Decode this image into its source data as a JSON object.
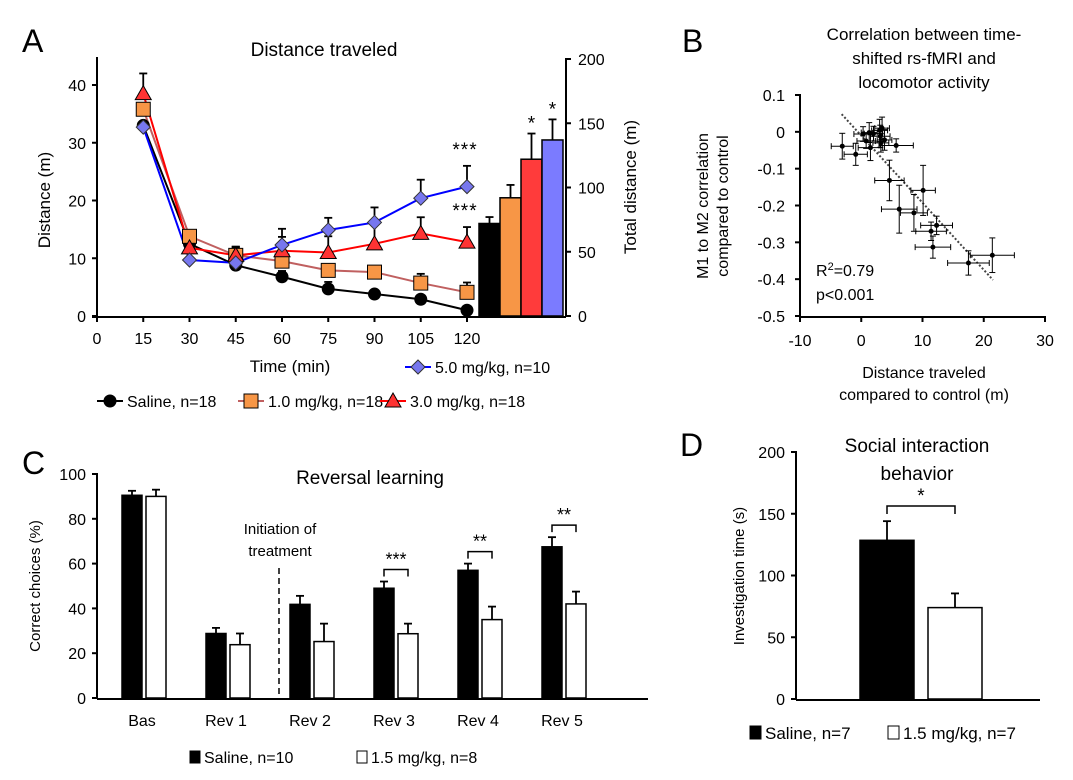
{
  "chart_data": [
    {
      "panel": "A",
      "type": "line",
      "title": "Distance traveled",
      "xlabel": "Time  (min)",
      "ylabel": "Distance (m)",
      "xlim": [
        0,
        120
      ],
      "ylim": [
        0,
        40
      ],
      "xticks": [
        0,
        15,
        30,
        45,
        60,
        75,
        90,
        105,
        120
      ],
      "yticks": [
        0,
        10,
        20,
        30,
        40
      ],
      "x": [
        15,
        30,
        45,
        60,
        75,
        90,
        105,
        120
      ],
      "series": [
        {
          "name": "Saline, n=18",
          "color": "#000000",
          "marker": "circle",
          "fill": "#000000",
          "values": [
            33,
            12.5,
            8.8,
            6.8,
            4.7,
            3.8,
            2.9,
            1.0
          ],
          "errors": [
            0,
            0.5,
            0.5,
            1.0,
            1.2,
            0.5,
            0.6,
            0.3
          ]
        },
        {
          "name": "1.0 mg/kg, n=18",
          "color": "#c06060",
          "marker": "square",
          "fill": "#f79646",
          "values": [
            35.8,
            13.8,
            10.5,
            9.5,
            7.9,
            7.6,
            5.7,
            4.1
          ],
          "errors": [
            0,
            0.7,
            1.5,
            1.1,
            0.8,
            0,
            1.6,
            1.7
          ]
        },
        {
          "name": "3.0 mg/kg, n=18",
          "color": "#ff0000",
          "marker": "triangle",
          "fill": "#ff3333",
          "values": [
            38.5,
            11.8,
            10.5,
            11.3,
            11.0,
            12.5,
            14.3,
            12.8
          ],
          "errors": [
            3.5,
            0,
            1.3,
            2.4,
            2.8,
            3.7,
            2.8,
            2.6
          ]
        },
        {
          "name": "5.0 mg/kg, n=10",
          "color": "#0000ff",
          "marker": "diamond",
          "fill": "#7777ee",
          "values": [
            32.7,
            9.7,
            9.2,
            12.3,
            14.9,
            16.2,
            20.4,
            22.4
          ],
          "errors": [
            0,
            0,
            2.8,
            2.8,
            2.1,
            2.6,
            3.2,
            3.6
          ]
        }
      ],
      "annotations": [
        {
          "x": 120,
          "series": "5.0 mg/kg, n=10",
          "text": "***"
        },
        {
          "x": 120,
          "series": "3.0 mg/kg, n=18",
          "text": "***"
        }
      ],
      "legend": "bottom"
    },
    {
      "panel": "A-inset",
      "type": "bar",
      "ylabel": "Total distance (m)",
      "ylim": [
        0,
        200
      ],
      "yticks": [
        0,
        50,
        100,
        150,
        200
      ],
      "categories": [
        "Saline",
        "1.0 mg/kg",
        "3.0 mg/kg",
        "5.0 mg/kg"
      ],
      "values": [
        72,
        92,
        122,
        137
      ],
      "errors": [
        5,
        10,
        20,
        16
      ],
      "colors": [
        "#000000",
        "#f79646",
        "#ff3b3b",
        "#7b7bff"
      ],
      "annotations": [
        "",
        "",
        "*",
        "*"
      ]
    },
    {
      "panel": "B",
      "type": "scatter",
      "title": "Correlation between time-shifted rs-fMRI and locomotor activity",
      "title_lines": [
        "Correlation between time-",
        "shifted rs-fMRI and",
        "locomotor activity"
      ],
      "xlabel_lines": [
        "Distance traveled",
        "compared to control (m)"
      ],
      "ylabel_lines": [
        "M1 to M2 correlation",
        "compared to control"
      ],
      "xlim": [
        -10,
        30
      ],
      "ylim": [
        -0.5,
        0.1
      ],
      "xticks": [
        -10,
        0,
        10,
        20,
        30
      ],
      "yticks": [
        0.1,
        0,
        -0.1,
        -0.2,
        -0.3,
        -0.4,
        -0.5
      ],
      "ytick_labels": [
        "0.1",
        "0",
        "-0.1",
        "-0.2",
        "-0.3",
        "-0.4",
        "-0.5"
      ],
      "points": [
        {
          "x": -3.1,
          "y": -0.039,
          "xerr": 1.8,
          "yerr": 0.035
        },
        {
          "x": -0.9,
          "y": -0.061,
          "xerr": 1.9,
          "yerr": 0.03
        },
        {
          "x": 0.3,
          "y": -0.006,
          "xerr": 1.5,
          "yerr": 0.02
        },
        {
          "x": 0.8,
          "y": -0.025,
          "xerr": 1.5,
          "yerr": 0.02
        },
        {
          "x": 1.3,
          "y": -0.002,
          "xerr": 1.3,
          "yerr": 0.027
        },
        {
          "x": 1.5,
          "y": -0.043,
          "xerr": 2.0,
          "yerr": 0.035
        },
        {
          "x": 2.0,
          "y": -0.005,
          "xerr": 1.5,
          "yerr": 0.02
        },
        {
          "x": 3.0,
          "y": 0.004,
          "xerr": 1.3,
          "yerr": 0.03
        },
        {
          "x": 3.1,
          "y": -0.012,
          "xerr": 1.6,
          "yerr": 0.03
        },
        {
          "x": 3.2,
          "y": -0.03,
          "xerr": 1.3,
          "yerr": 0.025
        },
        {
          "x": 3.4,
          "y": 0.01,
          "xerr": 1.2,
          "yerr": 0.03
        },
        {
          "x": 3.8,
          "y": -0.022,
          "xerr": 1.2,
          "yerr": 0.028
        },
        {
          "x": 5.7,
          "y": -0.037,
          "xerr": 2.8,
          "yerr": 0.018
        },
        {
          "x": 4.6,
          "y": -0.132,
          "xerr": 2.4,
          "yerr": 0.055
        },
        {
          "x": 6.2,
          "y": -0.21,
          "xerr": 2.9,
          "yerr": 0.065
        },
        {
          "x": 8.6,
          "y": -0.22,
          "xerr": 2.2,
          "yerr": 0.05
        },
        {
          "x": 10.1,
          "y": -0.159,
          "xerr": 2.0,
          "yerr": 0.068
        },
        {
          "x": 11.4,
          "y": -0.27,
          "xerr": 2.5,
          "yerr": 0.025
        },
        {
          "x": 12.3,
          "y": -0.254,
          "xerr": 2.6,
          "yerr": 0.025
        },
        {
          "x": 11.7,
          "y": -0.313,
          "xerr": 2.9,
          "yerr": 0.03
        },
        {
          "x": 17.5,
          "y": -0.356,
          "xerr": 3.4,
          "yerr": 0.033
        },
        {
          "x": 21.4,
          "y": -0.335,
          "xerr": 3.6,
          "yerr": 0.047
        }
      ],
      "trendline": {
        "x": [
          -3.2,
          21.5
        ],
        "y": [
          0.048,
          -0.402
        ],
        "style": "dotted"
      },
      "annotations": [
        "R2=0.79",
        "p<0.001"
      ],
      "r2_label": "R",
      "r2_sup": "2",
      "r2_value": "=0.79",
      "p_label": "p<0.001"
    },
    {
      "panel": "C",
      "type": "bar",
      "title": "Reversal learning",
      "ylabel": "Correct choices (%)",
      "ylim": [
        0,
        100
      ],
      "yticks": [
        0,
        20,
        40,
        60,
        80,
        100
      ],
      "categories": [
        "Bas",
        "Rev 1",
        "Rev 2",
        "Rev 3",
        "Rev 4",
        "Rev 5"
      ],
      "series": [
        {
          "name": "Saline, n=10",
          "color": "#000000",
          "values": [
            90.5,
            28.8,
            41.8,
            49.0,
            57.0,
            67.5
          ],
          "errors": [
            2.0,
            2.5,
            3.8,
            3.0,
            3.0,
            4.3
          ]
        },
        {
          "name": "1.5 mg/kg, n=8",
          "color": "#ffffff",
          "values": [
            90.0,
            23.8,
            25.2,
            28.7,
            35.0,
            42.0
          ],
          "errors": [
            3.0,
            5.0,
            8.0,
            4.5,
            5.8,
            5.5
          ]
        }
      ],
      "significance": [
        "",
        "",
        "",
        "***",
        "**",
        "**"
      ],
      "annotation": {
        "text_lines": [
          "Initiation of",
          "treatment"
        ],
        "between": [
          "Rev 1",
          "Rev 2"
        ],
        "style": "dashed"
      },
      "legend": "bottom"
    },
    {
      "panel": "D",
      "type": "bar",
      "title_lines": [
        "Social interaction",
        "behavior"
      ],
      "title": "Social interaction behavior",
      "ylabel": "Investigation time (s)",
      "ylim": [
        0,
        200
      ],
      "yticks": [
        0,
        50,
        100,
        150,
        200
      ],
      "categories": [
        "Saline, n=7",
        "1.5 mg/kg, n=7"
      ],
      "values": [
        128.5,
        74
      ],
      "errors": [
        15.5,
        11.5
      ],
      "colors": [
        "#000000",
        "#ffffff"
      ],
      "significance": "*",
      "legend": "bottom"
    }
  ],
  "panel_labels": [
    "A",
    "B",
    "C",
    "D"
  ]
}
